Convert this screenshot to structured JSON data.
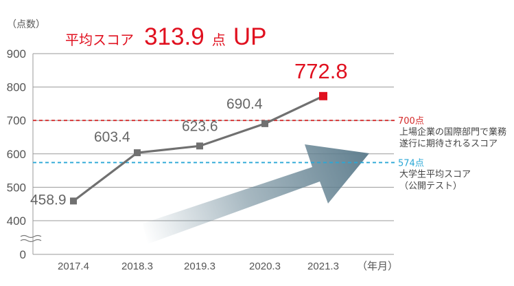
{
  "header": {
    "prefix": "平均スコア",
    "number": "313.9",
    "mid": "点",
    "suffix": "UP"
  },
  "chart_data": {
    "type": "line",
    "ylabel": "（点数）",
    "xlabel": "（年月）",
    "categories": [
      "2017.4",
      "2018.3",
      "2019.3",
      "2020.3",
      "2021.3"
    ],
    "series": [
      {
        "values": [
          458.9,
          603.4,
          623.6,
          690.4,
          772.8
        ],
        "labels": [
          "458.9",
          "603.4",
          "623.6",
          "690.4",
          "772.8"
        ]
      }
    ],
    "yticks": [
      0,
      400,
      500,
      600,
      700,
      800,
      900
    ],
    "ylim": [
      400,
      900
    ],
    "axis_break": true,
    "grid": true,
    "highlight_last_point": true,
    "colors": {
      "line": "#707070",
      "highlight": "#e0101f",
      "ref700": "#d42a2a",
      "ref574": "#2aa7d6",
      "arrow": "#607f8f"
    },
    "reference_lines": [
      {
        "value": 700,
        "label": "700点",
        "lines": [
          "上場企業の国際部門で業務",
          "遂行に期待されるスコア"
        ],
        "color": "#d42a2a"
      },
      {
        "value": 574,
        "label": "574点",
        "lines": [
          "大学生平均スコア",
          "（公開テスト）"
        ],
        "color": "#2aa7d6"
      }
    ]
  }
}
